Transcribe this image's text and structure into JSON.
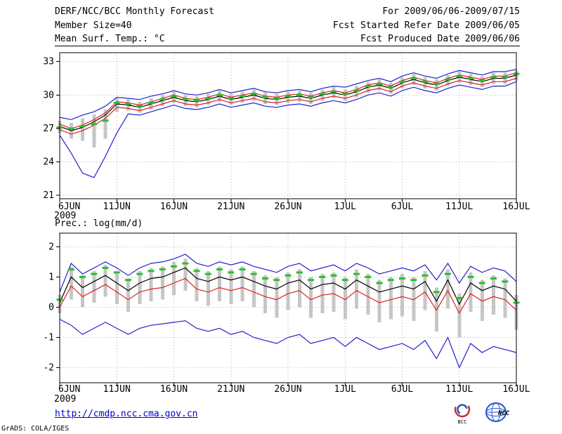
{
  "header": {
    "title": "DERF/NCC/BCC Monthly Forecast",
    "member_size": "Member Size=40",
    "period": "For 2009/06/06-2009/07/15",
    "refer_date": "Fcst Started Refer Date 2009/06/05",
    "produced_date": "Fcst Produced Date 2009/06/06"
  },
  "footer": {
    "link": "http://cmdp.ncc.cma.gov.cn",
    "credit": "GrADS: COLA/IGES",
    "bcc_logo_text": "BCC",
    "ncc_logo_text": "NCC"
  },
  "colors": {
    "grid": "#b4b4b4",
    "frame": "#000000",
    "bars": "#c6c6c6",
    "obs_dash": "#2cbe2c",
    "envelope": "#2222cc",
    "quartile": "#dd2222",
    "mean": "#000000",
    "link": "#0000cc"
  },
  "chart_data": [
    {
      "id": "temp",
      "type": "line",
      "label": "Mean Surf. Temp.: °C",
      "x_year": "2009",
      "x_tick_labels": [
        "6JUN",
        "11JUN",
        "16JUN",
        "21JUN",
        "26JUN",
        "1JUL",
        "6JUL",
        "11JUL",
        "16JUL"
      ],
      "x_tick_days": [
        0,
        5,
        10,
        15,
        20,
        25,
        30,
        35,
        40
      ],
      "ylim": [
        20.7,
        33.8
      ],
      "yticks": [
        21,
        24,
        27,
        30,
        33
      ],
      "grid": true,
      "series": [
        {
          "name": "ens-max",
          "color": "#2222cc",
          "values": [
            28.0,
            27.8,
            28.2,
            28.5,
            29.0,
            29.8,
            29.7,
            29.6,
            29.9,
            30.1,
            30.4,
            30.1,
            30.0,
            30.2,
            30.5,
            30.2,
            30.4,
            30.6,
            30.3,
            30.2,
            30.4,
            30.5,
            30.3,
            30.6,
            30.8,
            30.7,
            31.0,
            31.3,
            31.5,
            31.2,
            31.7,
            32.0,
            31.7,
            31.5,
            31.9,
            32.2,
            32.0,
            31.8,
            32.1,
            32.1,
            32.3
          ]
        },
        {
          "name": "upper-quartile",
          "color": "#dd2222",
          "values": [
            27.4,
            27.0,
            27.3,
            27.8,
            28.4,
            29.4,
            29.3,
            29.1,
            29.4,
            29.7,
            30.0,
            29.7,
            29.6,
            29.8,
            30.1,
            29.8,
            30.0,
            30.2,
            29.9,
            29.8,
            30.0,
            30.1,
            29.9,
            30.2,
            30.4,
            30.2,
            30.5,
            30.9,
            31.1,
            30.8,
            31.3,
            31.6,
            31.3,
            31.1,
            31.5,
            31.8,
            31.6,
            31.4,
            31.7,
            31.7,
            32.0
          ]
        },
        {
          "name": "ens-mean",
          "color": "#000000",
          "values": [
            27.2,
            26.8,
            27.1,
            27.6,
            28.2,
            29.2,
            29.1,
            28.9,
            29.2,
            29.5,
            29.8,
            29.5,
            29.4,
            29.6,
            29.9,
            29.6,
            29.8,
            30.0,
            29.7,
            29.6,
            29.8,
            29.9,
            29.7,
            30.0,
            30.2,
            30.0,
            30.3,
            30.7,
            30.9,
            30.6,
            31.1,
            31.4,
            31.1,
            30.9,
            31.3,
            31.6,
            31.4,
            31.2,
            31.5,
            31.5,
            31.8
          ]
        },
        {
          "name": "lower-quartile",
          "color": "#dd2222",
          "values": [
            26.9,
            26.5,
            26.8,
            27.3,
            27.9,
            28.9,
            28.8,
            28.6,
            28.9,
            29.2,
            29.5,
            29.2,
            29.1,
            29.3,
            29.6,
            29.3,
            29.5,
            29.7,
            29.4,
            29.3,
            29.5,
            29.6,
            29.4,
            29.7,
            29.9,
            29.7,
            30.0,
            30.4,
            30.6,
            30.3,
            30.8,
            31.1,
            30.8,
            30.6,
            31.0,
            31.3,
            31.1,
            30.9,
            31.2,
            31.2,
            31.5
          ]
        },
        {
          "name": "ens-min",
          "color": "#2222cc",
          "values": [
            26.4,
            24.8,
            23.0,
            22.6,
            24.5,
            26.6,
            28.3,
            28.2,
            28.5,
            28.8,
            29.1,
            28.8,
            28.7,
            28.9,
            29.2,
            28.9,
            29.1,
            29.3,
            29.0,
            28.9,
            29.1,
            29.2,
            29.0,
            29.3,
            29.5,
            29.3,
            29.6,
            30.0,
            30.2,
            29.9,
            30.4,
            30.7,
            30.4,
            30.2,
            30.6,
            30.9,
            30.7,
            30.5,
            30.8,
            30.8,
            31.2
          ]
        }
      ],
      "ensemble_bars": {
        "low": [
          26.6,
          26.1,
          25.9,
          25.3,
          26.1,
          28.5,
          28.6,
          28.4,
          28.7,
          29.0,
          29.3,
          29.0,
          28.9,
          29.1,
          29.4,
          29.1,
          29.3,
          29.5,
          29.2,
          29.1,
          29.3,
          29.4,
          29.2,
          29.5,
          29.7,
          29.5,
          29.8,
          30.2,
          30.4,
          30.1,
          30.6,
          30.9,
          30.6,
          30.4,
          30.8,
          31.1,
          30.9,
          30.7,
          31.0,
          31.0,
          31.3
        ],
        "high": [
          27.7,
          27.5,
          27.9,
          28.3,
          28.7,
          29.7,
          29.6,
          29.4,
          29.7,
          30.0,
          30.3,
          30.0,
          29.9,
          30.1,
          30.4,
          30.1,
          30.3,
          30.5,
          30.2,
          30.1,
          30.3,
          30.4,
          30.2,
          30.5,
          30.7,
          30.5,
          30.8,
          31.2,
          31.4,
          31.1,
          31.6,
          31.9,
          31.6,
          31.4,
          31.8,
          32.1,
          31.9,
          31.7,
          32.0,
          32.0,
          32.2
        ]
      },
      "obs_dashes": [
        27.1,
        27.0,
        27.2,
        27.4,
        27.7,
        29.3,
        29.2,
        29.0,
        29.3,
        29.6,
        29.9,
        29.6,
        29.5,
        29.7,
        30.0,
        29.7,
        29.9,
        30.1,
        29.8,
        29.7,
        29.9,
        30.0,
        29.8,
        30.1,
        30.3,
        30.1,
        30.4,
        30.8,
        31.0,
        30.7,
        31.2,
        31.5,
        31.2,
        31.0,
        31.4,
        31.7,
        31.5,
        31.3,
        31.6,
        31.6,
        31.9
      ]
    },
    {
      "id": "prec",
      "type": "line",
      "label": "Prec.: log(mm/d)",
      "x_year": "2009",
      "x_tick_labels": [
        "6JUN",
        "11JUN",
        "16JUN",
        "21JUN",
        "26JUN",
        "1JUL",
        "6JUL",
        "11JUL",
        "16JUL"
      ],
      "x_tick_days": [
        0,
        5,
        10,
        15,
        20,
        25,
        30,
        35,
        40
      ],
      "ylim": [
        -2.5,
        2.45
      ],
      "yticks": [
        -2,
        -1,
        0,
        1,
        2
      ],
      "grid": true,
      "series": [
        {
          "name": "ens-max",
          "color": "#2222cc",
          "values": [
            0.5,
            1.45,
            1.1,
            1.3,
            1.5,
            1.3,
            1.05,
            1.3,
            1.45,
            1.5,
            1.6,
            1.75,
            1.45,
            1.35,
            1.5,
            1.4,
            1.5,
            1.35,
            1.25,
            1.15,
            1.35,
            1.45,
            1.2,
            1.3,
            1.4,
            1.2,
            1.45,
            1.3,
            1.1,
            1.2,
            1.3,
            1.2,
            1.4,
            0.9,
            1.45,
            0.8,
            1.35,
            1.15,
            1.3,
            1.2,
            0.85
          ]
        },
        {
          "name": "ens-mean",
          "color": "#000000",
          "values": [
            0.15,
            1.0,
            0.65,
            0.85,
            1.05,
            0.8,
            0.55,
            0.8,
            0.95,
            1.0,
            1.15,
            1.3,
            0.95,
            0.85,
            1.0,
            0.9,
            1.0,
            0.85,
            0.7,
            0.6,
            0.8,
            0.9,
            0.6,
            0.75,
            0.8,
            0.6,
            0.9,
            0.7,
            0.5,
            0.6,
            0.7,
            0.6,
            0.85,
            0.2,
            0.9,
            0.1,
            0.8,
            0.55,
            0.7,
            0.6,
            0.2
          ]
        },
        {
          "name": "lower-quartile",
          "color": "#dd2222",
          "values": [
            0.0,
            0.7,
            0.35,
            0.55,
            0.75,
            0.5,
            0.25,
            0.5,
            0.6,
            0.65,
            0.8,
            0.95,
            0.6,
            0.5,
            0.65,
            0.55,
            0.65,
            0.5,
            0.35,
            0.25,
            0.45,
            0.55,
            0.25,
            0.4,
            0.45,
            0.25,
            0.55,
            0.35,
            0.15,
            0.25,
            0.35,
            0.25,
            0.5,
            -0.1,
            0.55,
            -0.2,
            0.45,
            0.2,
            0.35,
            0.25,
            -0.1
          ]
        },
        {
          "name": "ens-min",
          "color": "#2222cc",
          "values": [
            -0.4,
            -0.6,
            -0.9,
            -0.7,
            -0.5,
            -0.7,
            -0.9,
            -0.7,
            -0.6,
            -0.55,
            -0.5,
            -0.45,
            -0.7,
            -0.8,
            -0.7,
            -0.9,
            -0.8,
            -1.0,
            -1.1,
            -1.2,
            -1.0,
            -0.9,
            -1.2,
            -1.1,
            -1.0,
            -1.3,
            -1.0,
            -1.2,
            -1.4,
            -1.3,
            -1.2,
            -1.4,
            -1.1,
            -1.7,
            -1.0,
            -2.0,
            -1.2,
            -1.5,
            -1.3,
            -1.4,
            -1.5
          ]
        }
      ],
      "ensemble_bars": {
        "low": [
          -0.2,
          0.25,
          0.0,
          0.15,
          0.35,
          0.1,
          -0.15,
          0.1,
          0.2,
          0.25,
          0.4,
          0.55,
          0.2,
          0.05,
          0.2,
          0.1,
          0.2,
          0.0,
          -0.2,
          -0.35,
          -0.1,
          0.0,
          -0.35,
          -0.2,
          -0.15,
          -0.4,
          -0.05,
          -0.25,
          -0.5,
          -0.4,
          -0.3,
          -0.45,
          -0.1,
          -0.8,
          -0.05,
          -1.0,
          -0.15,
          -0.45,
          -0.25,
          -0.35,
          -0.75
        ],
        "high": [
          0.4,
          1.35,
          1.05,
          1.2,
          1.4,
          1.2,
          0.95,
          1.2,
          1.3,
          1.35,
          1.5,
          1.6,
          1.3,
          1.2,
          1.35,
          1.25,
          1.35,
          1.2,
          1.05,
          1.0,
          1.15,
          1.25,
          1.0,
          1.1,
          1.15,
          1.0,
          1.25,
          1.1,
          0.9,
          1.0,
          1.1,
          1.0,
          1.2,
          0.65,
          1.25,
          0.45,
          1.15,
          0.9,
          1.05,
          0.95,
          0.4
        ]
      },
      "obs_dashes": [
        0.25,
        1.25,
        1.0,
        1.1,
        1.3,
        1.15,
        0.9,
        1.1,
        1.2,
        1.25,
        1.35,
        1.45,
        1.2,
        1.1,
        1.25,
        1.15,
        1.25,
        1.1,
        0.95,
        0.9,
        1.05,
        1.15,
        0.9,
        1.0,
        1.05,
        0.9,
        1.1,
        1.0,
        0.8,
        0.9,
        0.95,
        0.9,
        1.05,
        0.5,
        1.1,
        0.3,
        1.0,
        0.8,
        0.95,
        0.85,
        0.15
      ]
    }
  ]
}
